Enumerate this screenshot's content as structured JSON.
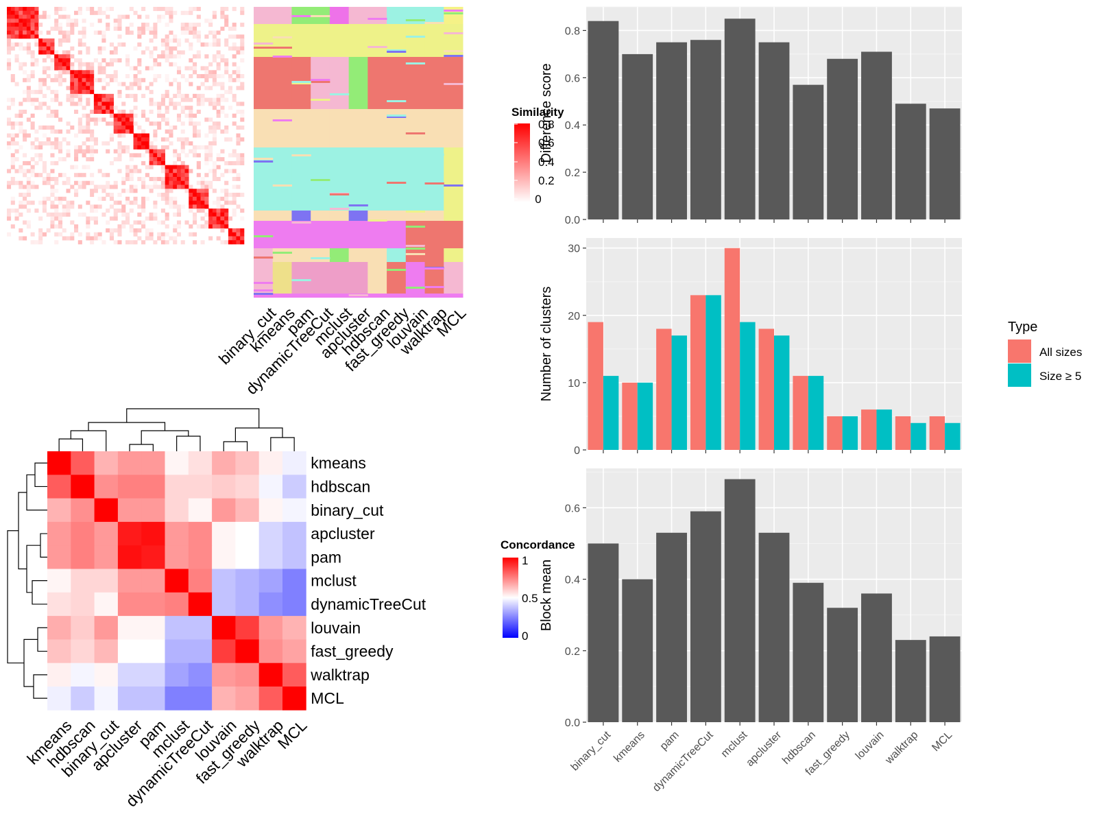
{
  "methods_cols": [
    "binary_cut",
    "kmeans",
    "pam",
    "dynamicTreeCut",
    "mclust",
    "apcluster",
    "hdbscan",
    "fast_greedy",
    "louvain",
    "walktrap",
    "MCL"
  ],
  "similarity_legend": {
    "title": "Similarity",
    "ticks": [
      "0.8",
      "0.6",
      "0.4",
      "0.2",
      "0"
    ]
  },
  "concordance_legend": {
    "title": "Concordance",
    "ticks": [
      "1",
      "0.5",
      "0"
    ]
  },
  "type_legend": {
    "title": "Type",
    "entries": [
      "All sizes",
      "Size ≥ 5"
    ]
  },
  "palette": {
    "bar": "#595959",
    "all_sizes": "#F8766D",
    "size5": "#00BFC4",
    "panel": "#EBEBEB"
  },
  "chart_data": [
    {
      "type": "heatmap",
      "title": "",
      "description_free": true,
      "color_scale": {
        "name": "Similarity",
        "min": 0,
        "max": 0.8,
        "low": "#ffffff",
        "high": "#ff0000"
      }
    },
    {
      "type": "heatmap",
      "title": "",
      "rows": [
        "kmeans",
        "hdbscan",
        "binary_cut",
        "apcluster",
        "pam",
        "mclust",
        "dynamicTreeCut",
        "louvain",
        "fast_greedy",
        "walktrap",
        "MCL"
      ],
      "columns": [
        "kmeans",
        "hdbscan",
        "binary_cut",
        "apcluster",
        "pam",
        "mclust",
        "dynamicTreeCut",
        "louvain",
        "fast_greedy",
        "walktrap",
        "MCL"
      ],
      "values": [
        [
          1.0,
          0.82,
          0.65,
          0.7,
          0.7,
          0.52,
          0.56,
          0.66,
          0.62,
          0.53,
          0.47
        ],
        [
          0.82,
          1.0,
          0.72,
          0.75,
          0.75,
          0.58,
          0.58,
          0.6,
          0.58,
          0.48,
          0.4
        ],
        [
          0.65,
          0.72,
          1.0,
          0.7,
          0.7,
          0.58,
          0.52,
          0.7,
          0.64,
          0.52,
          0.48
        ],
        [
          0.7,
          0.75,
          0.7,
          0.95,
          0.97,
          0.7,
          0.73,
          0.52,
          0.5,
          0.42,
          0.38
        ],
        [
          0.7,
          0.75,
          0.7,
          0.97,
          0.95,
          0.7,
          0.73,
          0.52,
          0.5,
          0.42,
          0.38
        ],
        [
          0.52,
          0.58,
          0.58,
          0.7,
          0.7,
          1.0,
          0.75,
          0.38,
          0.35,
          0.32,
          0.25
        ],
        [
          0.56,
          0.58,
          0.52,
          0.73,
          0.73,
          0.75,
          1.0,
          0.38,
          0.35,
          0.28,
          0.25
        ],
        [
          0.66,
          0.6,
          0.7,
          0.52,
          0.52,
          0.38,
          0.38,
          1.0,
          0.88,
          0.7,
          0.65
        ],
        [
          0.62,
          0.58,
          0.64,
          0.5,
          0.5,
          0.35,
          0.35,
          0.88,
          1.0,
          0.72,
          0.68
        ],
        [
          0.53,
          0.48,
          0.52,
          0.42,
          0.42,
          0.32,
          0.28,
          0.7,
          0.72,
          1.0,
          0.82
        ],
        [
          0.47,
          0.4,
          0.48,
          0.38,
          0.38,
          0.25,
          0.25,
          0.65,
          0.68,
          0.82,
          1.0
        ]
      ],
      "color_scale": {
        "name": "Concordance",
        "min": 0,
        "max": 1,
        "low": "#0000ff",
        "mid": "#ffffff",
        "high": "#ff0000"
      }
    },
    {
      "type": "bar",
      "title": "",
      "categories": [
        "binary_cut",
        "kmeans",
        "pam",
        "dynamicTreeCut",
        "mclust",
        "apcluster",
        "hdbscan",
        "fast_greedy",
        "louvain",
        "walktrap",
        "MCL"
      ],
      "values": [
        0.84,
        0.7,
        0.75,
        0.76,
        0.85,
        0.75,
        0.57,
        0.68,
        0.71,
        0.49,
        0.47
      ],
      "xlabel": "",
      "ylabel": "Difference score",
      "ylim": [
        0,
        0.9
      ],
      "yticks": [
        0.0,
        0.2,
        0.4,
        0.6,
        0.8
      ],
      "ytick_labels": [
        "0.0",
        "0.2",
        "0.4",
        "0.6",
        "0.8"
      ],
      "grid": true
    },
    {
      "type": "bar",
      "title": "",
      "categories": [
        "binary_cut",
        "kmeans",
        "pam",
        "dynamicTreeCut",
        "mclust",
        "apcluster",
        "hdbscan",
        "fast_greedy",
        "louvain",
        "walktrap",
        "MCL"
      ],
      "series": [
        {
          "name": "All sizes",
          "values": [
            19,
            10,
            18,
            23,
            30,
            18,
            11,
            5,
            6,
            5,
            5
          ]
        },
        {
          "name": "Size ≥ 5",
          "values": [
            11,
            10,
            17,
            23,
            19,
            17,
            11,
            5,
            6,
            4,
            4
          ]
        }
      ],
      "xlabel": "",
      "ylabel": "Number of clusters",
      "ylim": [
        0,
        31.5
      ],
      "yticks": [
        0,
        10,
        20,
        30
      ],
      "ytick_labels": [
        "0",
        "10",
        "20",
        "30"
      ],
      "legend": "right",
      "grid": true
    },
    {
      "type": "bar",
      "title": "",
      "categories": [
        "binary_cut",
        "kmeans",
        "pam",
        "dynamicTreeCut",
        "mclust",
        "apcluster",
        "hdbscan",
        "fast_greedy",
        "louvain",
        "walktrap",
        "MCL"
      ],
      "values": [
        0.5,
        0.4,
        0.53,
        0.59,
        0.68,
        0.53,
        0.39,
        0.32,
        0.36,
        0.23,
        0.24
      ],
      "xlabel": "",
      "ylabel": "Block mean",
      "ylim": [
        0,
        0.71
      ],
      "yticks": [
        0.0,
        0.2,
        0.4,
        0.6
      ],
      "ytick_labels": [
        "0.0",
        "0.2",
        "0.4",
        "0.6"
      ],
      "grid": true
    }
  ]
}
